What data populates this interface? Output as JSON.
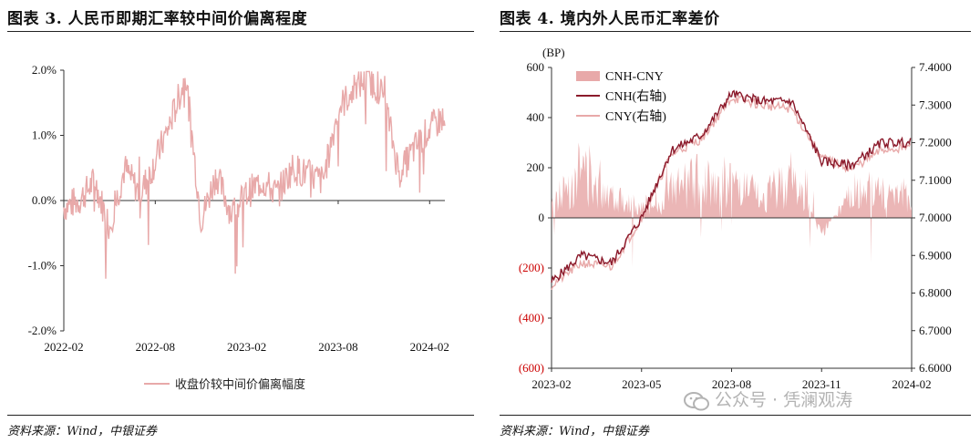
{
  "left": {
    "title": "图表 3. 人民币即期汇率较中间价偏离程度",
    "source": "资料来源：Wind，中银证券",
    "chart_data": {
      "type": "line",
      "ylim": [
        -2.0,
        2.0
      ],
      "y_ticks": [
        "2.0%",
        "1.0%",
        "0.0%",
        "-1.0%",
        "-2.0%"
      ],
      "x_ticks": [
        "2022-02",
        "2022-08",
        "2023-02",
        "2023-08",
        "2024-02"
      ],
      "xlim": [
        "2022-02",
        "2024-03"
      ],
      "legend_position": "bottom",
      "series": [
        {
          "name": "收盘价较中间价偏离幅度",
          "color": "#e8a9a9",
          "x": [
            "2022-02",
            "2022-03",
            "2022-04",
            "2022-05",
            "2022-06",
            "2022-07",
            "2022-08",
            "2022-09",
            "2022-10",
            "2022-11",
            "2022-12",
            "2023-01",
            "2023-02",
            "2023-03",
            "2023-04",
            "2023-05",
            "2023-06",
            "2023-07",
            "2023-08",
            "2023-09",
            "2023-10",
            "2023-11",
            "2023-12",
            "2024-01",
            "2024-02",
            "2024-03"
          ],
          "values": [
            -0.1,
            0.0,
            0.3,
            -0.4,
            0.5,
            0.1,
            0.6,
            1.2,
            1.9,
            -0.3,
            0.4,
            -0.2,
            0.1,
            0.3,
            0.1,
            0.5,
            0.4,
            0.3,
            1.4,
            1.7,
            1.9,
            1.6,
            0.4,
            0.8,
            1.1,
            1.3
          ]
        }
      ]
    }
  },
  "right": {
    "title": "图表 4. 境内外人民币汇率差价",
    "source": "资料来源：Wind，中银证券",
    "chart_data": {
      "type": "area",
      "ylabel": "(BP)",
      "ylim_left": [
        -600,
        600
      ],
      "ylim_right": [
        6.6,
        7.4
      ],
      "y_ticks_left": [
        "600",
        "400",
        "200",
        "0",
        "(200)",
        "(400)",
        "(600)"
      ],
      "y_ticks_right": [
        "7.4000",
        "7.3000",
        "7.2000",
        "7.1000",
        "7.0000",
        "6.9000",
        "6.8000",
        "6.7000",
        "6.6000"
      ],
      "x_ticks": [
        "2023-02",
        "2023-05",
        "2023-08",
        "2023-11",
        "2024-02"
      ],
      "xlim": [
        "2023-02",
        "2024-02"
      ],
      "legend_position": "top-left",
      "series": [
        {
          "name": "CNH-CNY",
          "color": "#e8a9a9",
          "axis": "left",
          "x": [
            "2023-02",
            "2023-03",
            "2023-04",
            "2023-05",
            "2023-06",
            "2023-07",
            "2023-08",
            "2023-09",
            "2023-10",
            "2023-11",
            "2023-12",
            "2024-01",
            "2024-02"
          ],
          "values": [
            50,
            220,
            110,
            40,
            120,
            170,
            150,
            80,
            180,
            -60,
            100,
            130,
            90
          ]
        },
        {
          "name": "CNH(右轴)",
          "color": "#8b1a2b",
          "axis": "right",
          "x": [
            "2023-02",
            "2023-03",
            "2023-04",
            "2023-05",
            "2023-06",
            "2023-07",
            "2023-08",
            "2023-09",
            "2023-10",
            "2023-11",
            "2023-12",
            "2024-01",
            "2024-02"
          ],
          "values": [
            6.83,
            6.9,
            6.88,
            7.0,
            7.18,
            7.22,
            7.33,
            7.31,
            7.31,
            7.15,
            7.14,
            7.2,
            7.2
          ]
        },
        {
          "name": "CNY(右轴)",
          "color": "#e8a9a9",
          "axis": "right",
          "x": [
            "2023-02",
            "2023-03",
            "2023-04",
            "2023-05",
            "2023-06",
            "2023-07",
            "2023-08",
            "2023-09",
            "2023-10",
            "2023-11",
            "2023-12",
            "2024-01",
            "2024-02"
          ],
          "values": [
            6.82,
            6.88,
            6.87,
            7.0,
            7.17,
            7.21,
            7.32,
            7.3,
            7.29,
            7.16,
            7.13,
            7.18,
            7.19
          ]
        }
      ]
    }
  },
  "watermark": {
    "text": "公众号 · 凭澜观涛",
    "icon": "wechat-icon"
  }
}
